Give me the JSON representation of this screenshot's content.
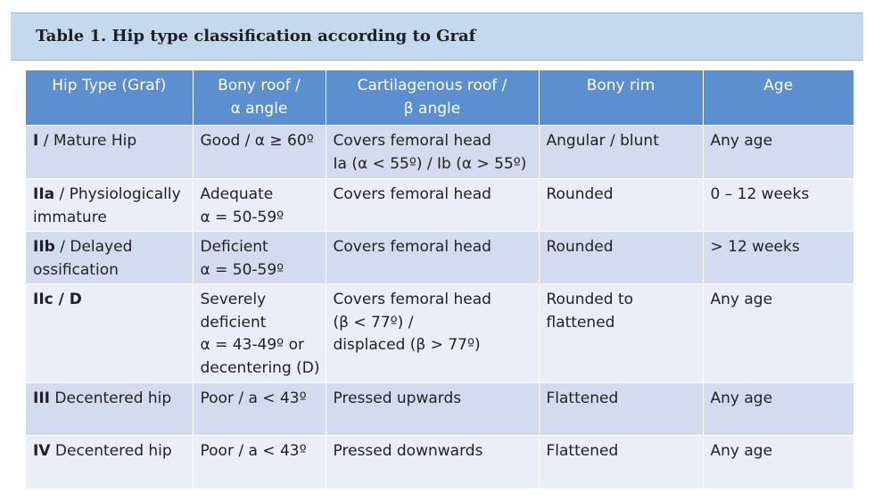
{
  "caption": "Table 1. Hip type classification according to Graf",
  "header": {
    "col1": [
      "Hip Type (Graf)"
    ],
    "col2": [
      "Bony roof /",
      "α angle"
    ],
    "col3": [
      "Cartilagenous roof /",
      "β angle"
    ],
    "col4": [
      "Bony rim"
    ],
    "col5": [
      "Age"
    ]
  },
  "rows": [
    {
      "type_bold": "I",
      "type_rest": " / Mature Hip",
      "type_line2": "",
      "bony_roof": [
        "Good / α ≥ 60º"
      ],
      "cartilage_roof": [
        "Covers femoral head",
        "Ia (α < 55º) / Ib (α > 55º)"
      ],
      "bony_rim": [
        "Angular / blunt"
      ],
      "age": "Any age"
    },
    {
      "type_bold": "IIa",
      "type_rest": " / Physiologically",
      "type_line2": "immature",
      "bony_roof": [
        "Adequate",
        "α = 50-59º"
      ],
      "cartilage_roof": [
        "Covers femoral head"
      ],
      "bony_rim": [
        "Rounded"
      ],
      "age": "0 – 12 weeks"
    },
    {
      "type_bold": "IIb",
      "type_rest": " / Delayed",
      "type_line2": "ossification",
      "bony_roof": [
        "Deficient",
        "α = 50-59º"
      ],
      "cartilage_roof": [
        "Covers femoral head"
      ],
      "bony_rim": [
        "Rounded"
      ],
      "age": "> 12 weeks"
    },
    {
      "type_bold": "IIc / D",
      "type_rest": "",
      "type_line2": "",
      "bony_roof": [
        "Severely",
        "deficient",
        "α = 43-49º or",
        "decentering (D)"
      ],
      "cartilage_roof": [
        "Covers femoral head",
        "(β < 77º) /",
        "displaced (β > 77º)"
      ],
      "bony_rim": [
        "Rounded to",
        "flattened"
      ],
      "age": "Any age"
    },
    {
      "type_bold": "III",
      "type_rest": " Decentered hip",
      "type_line2": "",
      "bony_roof": [
        "Poor / a < 43º"
      ],
      "cartilage_roof": [
        "Pressed upwards"
      ],
      "bony_rim": [
        "Flattened"
      ],
      "age": "Any age"
    },
    {
      "type_bold": "IV",
      "type_rest": " Decentered hip",
      "type_line2": "",
      "bony_roof": [
        "Poor / a < 43º"
      ],
      "cartilage_roof": [
        "Pressed downwards"
      ],
      "bony_rim": [
        "Flattened"
      ],
      "age": "Any age"
    }
  ],
  "colors": {
    "caption_bg": "#c5d9ec",
    "header_bg": "#5b8fd0",
    "row_odd_bg": "#d3dcee",
    "row_even_bg": "#e9eef7"
  }
}
